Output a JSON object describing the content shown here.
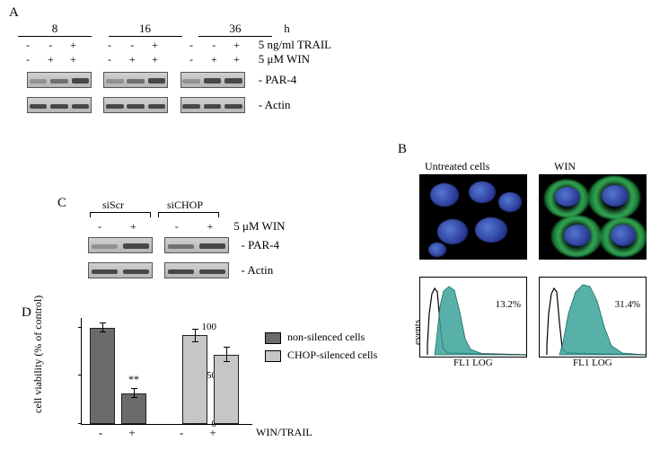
{
  "panelA": {
    "label": "A",
    "time_unit": "h",
    "timepoints": [
      "8",
      "16",
      "36"
    ],
    "row1_label": "5 ng/ml TRAIL",
    "row2_label": "5 μM WIN",
    "row1_marks": [
      "-",
      "-",
      "+",
      "-",
      "-",
      "+",
      "-",
      "-",
      "+"
    ],
    "row2_marks": [
      "-",
      "+",
      "+",
      "-",
      "+",
      "+",
      "-",
      "+",
      "+"
    ],
    "blot1_label": "- PAR-4",
    "blot2_label": "- Actin",
    "par4_intensity": [
      [
        "faint",
        "med",
        "strong"
      ],
      [
        "faint",
        "med",
        "strong"
      ],
      [
        "faint",
        "strong",
        "strong"
      ]
    ]
  },
  "panelB": {
    "label": "B",
    "left_title": "Untreated cells",
    "right_title": "WIN",
    "left_pct": "13.2%",
    "right_pct": "31.4%",
    "xaxis": "FL1 LOG",
    "yaxis": "events",
    "hist_fill": "#3aa39a",
    "hist_outline": "#000000"
  },
  "panelC": {
    "label": "C",
    "col1": "siScr",
    "col2": "siCHOP",
    "treatment_label": "5 μM WIN",
    "marks": [
      "-",
      "+",
      "-",
      "+"
    ],
    "blot1_label": "- PAR-4",
    "blot2_label": "- Actin",
    "par4_intensity": [
      "faint",
      "strong",
      "med",
      "strong"
    ]
  },
  "panelD": {
    "label": "D",
    "yaxis": "cell viability (% of control)",
    "ymax": 110,
    "yticks": [
      0,
      50,
      100
    ],
    "ytick_labels": [
      "0",
      "50",
      "100"
    ],
    "bars": [
      {
        "group": 0,
        "series": "dark",
        "value": 100,
        "err": 5,
        "annotation": ""
      },
      {
        "group": 1,
        "series": "dark",
        "value": 32,
        "err": 5,
        "annotation": "**"
      },
      {
        "group": 2,
        "series": "light",
        "value": 92,
        "err": 7,
        "annotation": ""
      },
      {
        "group": 3,
        "series": "light",
        "value": 72,
        "err": 8,
        "annotation": ""
      }
    ],
    "xlabels": [
      "-",
      "+",
      "-",
      "+"
    ],
    "xaxis_label": "WIN/TRAIL",
    "legend": {
      "dark": "non-silenced cells",
      "light": "CHOP-silenced cells"
    },
    "colors": {
      "dark": "#6b6b6b",
      "light": "#c6c6c6"
    }
  }
}
